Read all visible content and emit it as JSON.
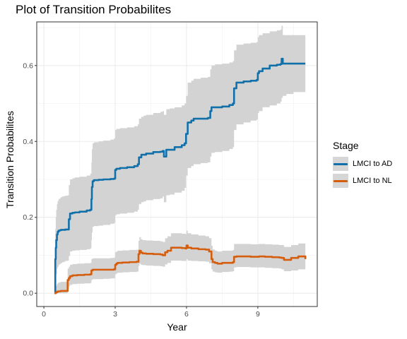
{
  "chart_data": {
    "type": "line",
    "title": "Plot of Transition Probabilites",
    "xlabel": "Year",
    "ylabel": "Transition Probabilites",
    "xlim": [
      -0.3,
      11.5
    ],
    "ylim": [
      -0.035,
      0.715
    ],
    "xticks": [
      0,
      3,
      6,
      9
    ],
    "yticks": [
      0.0,
      0.2,
      0.4,
      0.6
    ],
    "ytick_labels": [
      "0.0",
      "0.2",
      "0.4",
      "0.6"
    ],
    "grid": true,
    "legend": {
      "title": "Stage",
      "position": "right"
    },
    "series": [
      {
        "name": "LMCI to AD",
        "color": "#1170aa",
        "x": [
          0.45,
          0.48,
          0.5,
          0.52,
          0.55,
          0.58,
          0.62,
          0.67,
          0.7,
          0.72,
          0.75,
          0.78,
          0.85,
          0.9,
          1.0,
          1.05,
          1.1,
          1.2,
          1.3,
          1.5,
          1.8,
          1.95,
          2.0,
          2.02,
          2.05,
          2.1,
          2.3,
          2.5,
          2.8,
          2.95,
          3.0,
          3.05,
          3.2,
          3.5,
          3.8,
          3.95,
          4.0,
          4.1,
          4.2,
          4.3,
          4.6,
          4.9,
          5.0,
          5.05,
          5.15,
          5.3,
          5.5,
          5.8,
          5.92,
          5.98,
          6.05,
          6.2,
          6.3,
          6.6,
          6.9,
          7.0,
          7.05,
          7.2,
          7.5,
          7.8,
          7.95,
          8.0,
          8.1,
          8.4,
          8.7,
          8.95,
          9.0,
          9.05,
          9.2,
          9.5,
          9.8,
          9.95,
          10.0,
          10.05,
          10.2,
          10.5,
          11.0
        ],
        "values": [
          0.0,
          0.09,
          0.12,
          0.14,
          0.155,
          0.162,
          0.165,
          0.166,
          0.166,
          0.167,
          0.167,
          0.167,
          0.167,
          0.168,
          0.168,
          0.195,
          0.21,
          0.212,
          0.213,
          0.215,
          0.218,
          0.22,
          0.248,
          0.28,
          0.295,
          0.298,
          0.299,
          0.3,
          0.301,
          0.302,
          0.325,
          0.328,
          0.33,
          0.332,
          0.335,
          0.34,
          0.358,
          0.365,
          0.365,
          0.368,
          0.372,
          0.373,
          0.375,
          0.36,
          0.378,
          0.378,
          0.385,
          0.39,
          0.395,
          0.42,
          0.45,
          0.455,
          0.46,
          0.46,
          0.462,
          0.48,
          0.49,
          0.49,
          0.492,
          0.496,
          0.5,
          0.54,
          0.555,
          0.558,
          0.56,
          0.562,
          0.58,
          0.585,
          0.592,
          0.6,
          0.602,
          0.604,
          0.618,
          0.605,
          0.605,
          0.605,
          0.605
        ],
        "lower": [
          0.0,
          0.0,
          0.03,
          0.05,
          0.065,
          0.07,
          0.075,
          0.077,
          0.078,
          0.079,
          0.08,
          0.082,
          0.083,
          0.085,
          0.086,
          0.098,
          0.11,
          0.112,
          0.113,
          0.114,
          0.116,
          0.118,
          0.14,
          0.16,
          0.175,
          0.177,
          0.178,
          0.18,
          0.183,
          0.185,
          0.205,
          0.208,
          0.21,
          0.212,
          0.215,
          0.22,
          0.235,
          0.24,
          0.242,
          0.245,
          0.248,
          0.25,
          0.255,
          0.24,
          0.258,
          0.26,
          0.265,
          0.27,
          0.278,
          0.31,
          0.33,
          0.335,
          0.34,
          0.343,
          0.345,
          0.36,
          0.37,
          0.372,
          0.375,
          0.38,
          0.385,
          0.43,
          0.445,
          0.45,
          0.455,
          0.458,
          0.475,
          0.48,
          0.49,
          0.495,
          0.5,
          0.505,
          0.515,
          0.52,
          0.525,
          0.53,
          0.53
        ],
        "upper": [
          0.0,
          0.17,
          0.2,
          0.22,
          0.235,
          0.243,
          0.248,
          0.25,
          0.252,
          0.253,
          0.254,
          0.255,
          0.256,
          0.257,
          0.258,
          0.285,
          0.3,
          0.303,
          0.305,
          0.307,
          0.31,
          0.315,
          0.345,
          0.38,
          0.395,
          0.398,
          0.4,
          0.402,
          0.405,
          0.408,
          0.43,
          0.433,
          0.435,
          0.437,
          0.44,
          0.445,
          0.46,
          0.465,
          0.468,
          0.47,
          0.475,
          0.478,
          0.48,
          0.47,
          0.485,
          0.487,
          0.49,
          0.495,
          0.5,
          0.52,
          0.555,
          0.56,
          0.565,
          0.568,
          0.57,
          0.59,
          0.6,
          0.603,
          0.605,
          0.608,
          0.612,
          0.64,
          0.655,
          0.658,
          0.66,
          0.662,
          0.675,
          0.68,
          0.685,
          0.69,
          0.693,
          0.695,
          0.705,
          0.68,
          0.68,
          0.68,
          0.68
        ]
      },
      {
        "name": "LMCI to NL",
        "color": "#d55e0e",
        "x": [
          0.45,
          0.5,
          0.55,
          0.6,
          0.7,
          0.9,
          0.95,
          1.0,
          1.05,
          1.1,
          1.2,
          1.4,
          1.7,
          1.95,
          2.0,
          2.05,
          2.2,
          2.5,
          2.8,
          2.95,
          3.0,
          3.05,
          3.1,
          3.3,
          3.6,
          3.9,
          3.98,
          4.02,
          4.08,
          4.15,
          4.3,
          4.6,
          4.9,
          5.0,
          5.1,
          5.2,
          5.35,
          5.5,
          5.8,
          5.95,
          6.0,
          6.05,
          6.2,
          6.5,
          6.8,
          6.95,
          7.05,
          7.1,
          7.2,
          7.3,
          7.5,
          7.8,
          7.95,
          8.0,
          8.1,
          8.4,
          8.7,
          8.95,
          9.0,
          9.05,
          9.3,
          9.6,
          9.9,
          10.0,
          10.1,
          10.4,
          10.7,
          11.0
        ],
        "values": [
          0.0,
          0.002,
          0.004,
          0.005,
          0.006,
          0.006,
          0.006,
          0.035,
          0.04,
          0.045,
          0.047,
          0.048,
          0.049,
          0.05,
          0.06,
          0.062,
          0.062,
          0.062,
          0.062,
          0.063,
          0.075,
          0.078,
          0.08,
          0.081,
          0.082,
          0.083,
          0.103,
          0.112,
          0.107,
          0.105,
          0.104,
          0.103,
          0.102,
          0.1,
          0.108,
          0.112,
          0.12,
          0.12,
          0.119,
          0.118,
          0.126,
          0.12,
          0.118,
          0.116,
          0.115,
          0.11,
          0.09,
          0.082,
          0.08,
          0.078,
          0.08,
          0.08,
          0.082,
          0.096,
          0.097,
          0.097,
          0.096,
          0.096,
          0.096,
          0.097,
          0.096,
          0.095,
          0.094,
          0.093,
          0.088,
          0.093,
          0.097,
          0.09
        ],
        "lower": [
          0.0,
          0.0,
          0.0,
          0.0,
          0.0,
          0.0,
          0.0,
          0.012,
          0.018,
          0.022,
          0.024,
          0.025,
          0.026,
          0.027,
          0.035,
          0.037,
          0.037,
          0.038,
          0.039,
          0.04,
          0.05,
          0.052,
          0.054,
          0.055,
          0.056,
          0.057,
          0.072,
          0.078,
          0.075,
          0.074,
          0.073,
          0.072,
          0.071,
          0.07,
          0.076,
          0.08,
          0.086,
          0.086,
          0.085,
          0.085,
          0.09,
          0.086,
          0.085,
          0.084,
          0.083,
          0.079,
          0.063,
          0.057,
          0.055,
          0.054,
          0.056,
          0.057,
          0.058,
          0.068,
          0.069,
          0.069,
          0.068,
          0.068,
          0.068,
          0.068,
          0.067,
          0.066,
          0.065,
          0.063,
          0.058,
          0.06,
          0.063,
          0.055
        ],
        "upper": [
          0.0,
          0.02,
          0.025,
          0.028,
          0.03,
          0.03,
          0.03,
          0.065,
          0.07,
          0.075,
          0.077,
          0.078,
          0.079,
          0.08,
          0.09,
          0.092,
          0.092,
          0.092,
          0.093,
          0.094,
          0.108,
          0.11,
          0.112,
          0.113,
          0.114,
          0.115,
          0.138,
          0.148,
          0.142,
          0.14,
          0.139,
          0.138,
          0.137,
          0.135,
          0.145,
          0.15,
          0.158,
          0.158,
          0.157,
          0.156,
          0.165,
          0.158,
          0.155,
          0.152,
          0.15,
          0.145,
          0.125,
          0.115,
          0.112,
          0.11,
          0.112,
          0.112,
          0.114,
          0.13,
          0.13,
          0.13,
          0.129,
          0.129,
          0.129,
          0.13,
          0.129,
          0.128,
          0.127,
          0.127,
          0.122,
          0.127,
          0.131,
          0.125
        ]
      }
    ]
  }
}
